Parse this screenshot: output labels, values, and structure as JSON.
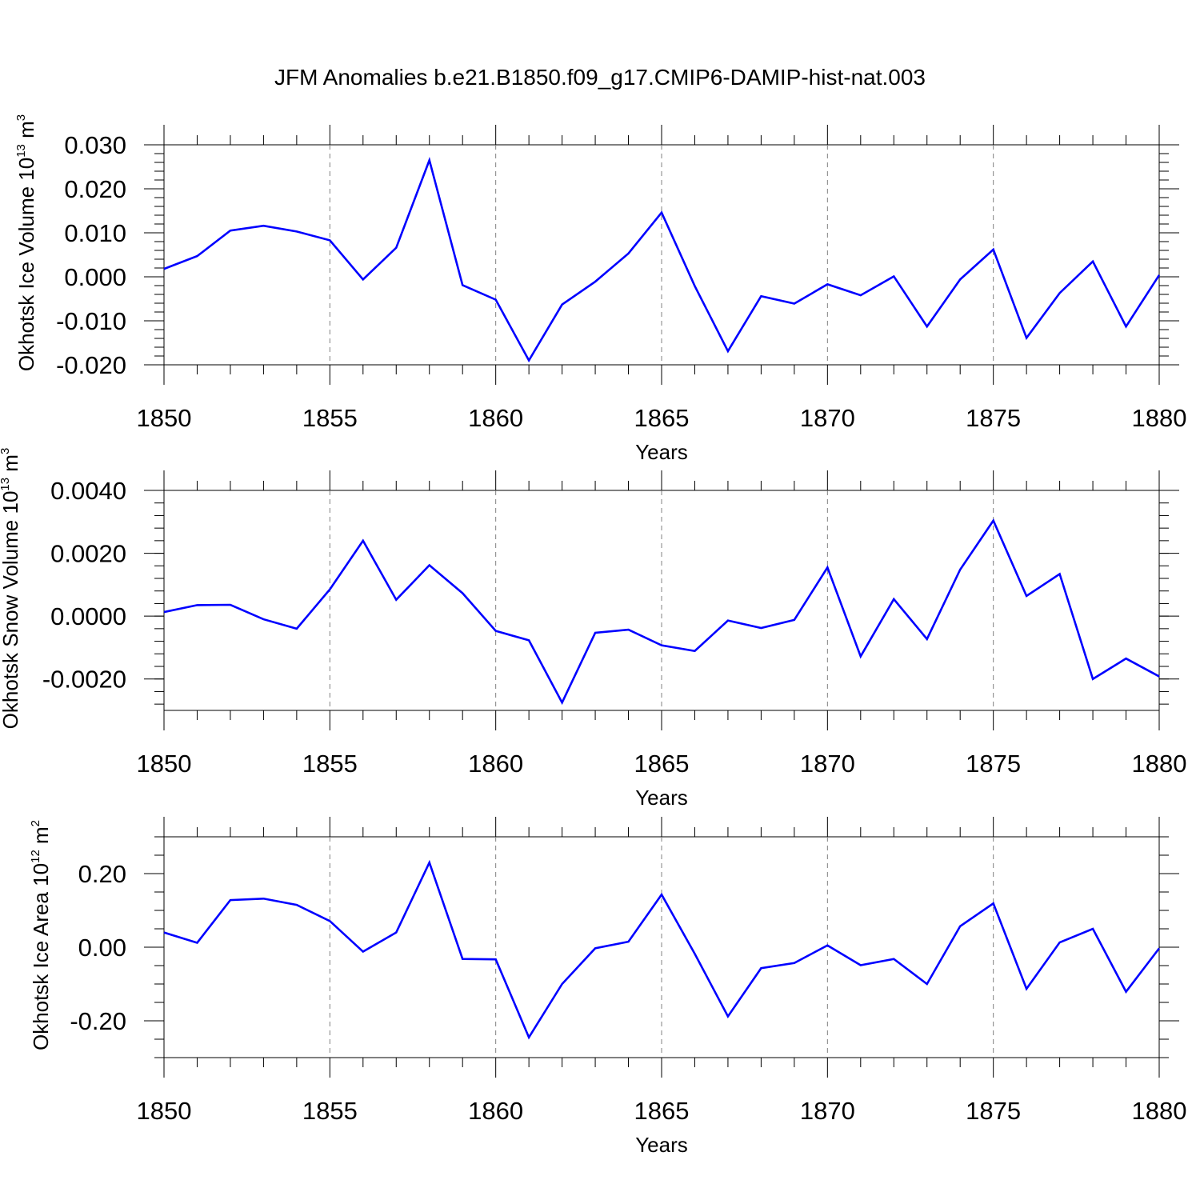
{
  "figure": {
    "title": "JFM Anomalies b.e21.B1850.f09_g17.CMIP6-DAMIP-hist-nat.003"
  },
  "chart_data": [
    {
      "type": "line",
      "title": "",
      "xlabel": "Years",
      "ylabel": {
        "text": "Okhotsk Ice Volume 10",
        "exp": "13",
        "unit": " m",
        "unit_exp": "3"
      },
      "xlim": [
        1850,
        1880
      ],
      "ylim": [
        -0.02,
        0.03
      ],
      "x_ticks": [
        "1850",
        "1855",
        "1860",
        "1865",
        "1870",
        "1875",
        "1880"
      ],
      "y_ticks": [
        {
          "value": 0.03,
          "label": "0.030"
        },
        {
          "value": 0.02,
          "label": "0.020"
        },
        {
          "value": 0.01,
          "label": "0.010"
        },
        {
          "value": 0.0,
          "label": "0.000"
        },
        {
          "value": -0.01,
          "label": "-0.010"
        },
        {
          "value": -0.02,
          "label": "-0.020"
        }
      ],
      "y_minor_step": 0.002,
      "grid": "dashed vertical lines at major x ticks",
      "series": [
        {
          "color": "#0000ff",
          "x": [
            1850,
            1851,
            1852,
            1853,
            1854,
            1855,
            1856,
            1857,
            1858,
            1859,
            1860,
            1861,
            1862,
            1863,
            1864,
            1865,
            1866,
            1867,
            1868,
            1869,
            1870,
            1871,
            1872,
            1873,
            1874,
            1875,
            1876,
            1877,
            1878,
            1879,
            1880
          ],
          "values": [
            0.0018,
            0.0047,
            0.0105,
            0.0116,
            0.0103,
            0.0083,
            -0.0006,
            0.0066,
            0.0265,
            -0.0019,
            -0.0052,
            -0.019,
            -0.0063,
            -0.0011,
            0.0053,
            0.0146,
            -0.0021,
            -0.0169,
            -0.0044,
            -0.0061,
            -0.0017,
            -0.0042,
            0.0001,
            -0.0113,
            -0.0006,
            0.0062,
            -0.0139,
            -0.0037,
            0.0035,
            -0.0113,
            0.0004
          ]
        }
      ]
    },
    {
      "type": "line",
      "title": "",
      "xlabel": "Years",
      "ylabel": {
        "text": "Okhotsk Snow Volume 10",
        "exp": "13",
        "unit": " m",
        "unit_exp": "3"
      },
      "xlim": [
        1850,
        1880
      ],
      "ylim": [
        -0.003,
        0.004
      ],
      "x_ticks": [
        "1850",
        "1855",
        "1860",
        "1865",
        "1870",
        "1875",
        "1880"
      ],
      "y_ticks": [
        {
          "value": 0.004,
          "label": "0.0040"
        },
        {
          "value": 0.002,
          "label": "0.0020"
        },
        {
          "value": 0.0,
          "label": "0.0000"
        },
        {
          "value": -0.002,
          "label": "-0.0020"
        }
      ],
      "y_minor_step": 0.0004,
      "grid": "dashed vertical lines at major x ticks",
      "series": [
        {
          "color": "#0000ff",
          "x": [
            1850,
            1851,
            1852,
            1853,
            1854,
            1855,
            1856,
            1857,
            1858,
            1859,
            1860,
            1861,
            1862,
            1863,
            1864,
            1865,
            1866,
            1867,
            1868,
            1869,
            1870,
            1871,
            1872,
            1873,
            1874,
            1875,
            1876,
            1877,
            1878,
            1879,
            1880
          ],
          "values": [
            0.00013,
            0.00035,
            0.00036,
            -0.0001,
            -0.0004,
            0.00085,
            0.0024,
            0.00052,
            0.00162,
            0.00073,
            -0.00047,
            -0.00077,
            -0.00275,
            -0.00053,
            -0.00043,
            -0.00093,
            -0.00111,
            -0.00014,
            -0.00038,
            -0.00012,
            0.00155,
            -0.00128,
            0.00054,
            -0.00073,
            0.00148,
            0.00304,
            0.00064,
            0.00134,
            -0.002,
            -0.00135,
            -0.00192
          ]
        }
      ]
    },
    {
      "type": "line",
      "title": "",
      "xlabel": "Years",
      "ylabel": {
        "text": "Okhotsk Ice Area 10",
        "exp": "12",
        "unit": " m",
        "unit_exp": "2"
      },
      "xlim": [
        1850,
        1880
      ],
      "ylim": [
        -0.3,
        0.3
      ],
      "x_ticks": [
        "1850",
        "1855",
        "1860",
        "1865",
        "1870",
        "1875",
        "1880"
      ],
      "y_ticks": [
        {
          "value": 0.2,
          "label": "0.20"
        },
        {
          "value": 0.0,
          "label": "0.00"
        },
        {
          "value": -0.2,
          "label": "-0.20"
        }
      ],
      "y_minor_step": 0.05,
      "grid": "dashed vertical lines at major x ticks",
      "series": [
        {
          "color": "#0000ff",
          "x": [
            1850,
            1851,
            1852,
            1853,
            1854,
            1855,
            1856,
            1857,
            1858,
            1859,
            1860,
            1861,
            1862,
            1863,
            1864,
            1865,
            1866,
            1867,
            1868,
            1869,
            1870,
            1871,
            1872,
            1873,
            1874,
            1875,
            1876,
            1877,
            1878,
            1879,
            1880
          ],
          "values": [
            0.04,
            0.012,
            0.128,
            0.132,
            0.115,
            0.071,
            -0.012,
            0.04,
            0.23,
            -0.032,
            -0.033,
            -0.245,
            -0.1,
            -0.003,
            0.015,
            0.143,
            -0.018,
            -0.188,
            -0.057,
            -0.043,
            0.005,
            -0.049,
            -0.032,
            -0.1,
            0.057,
            0.119,
            -0.113,
            0.013,
            0.05,
            -0.121,
            -0.003
          ]
        }
      ]
    }
  ]
}
